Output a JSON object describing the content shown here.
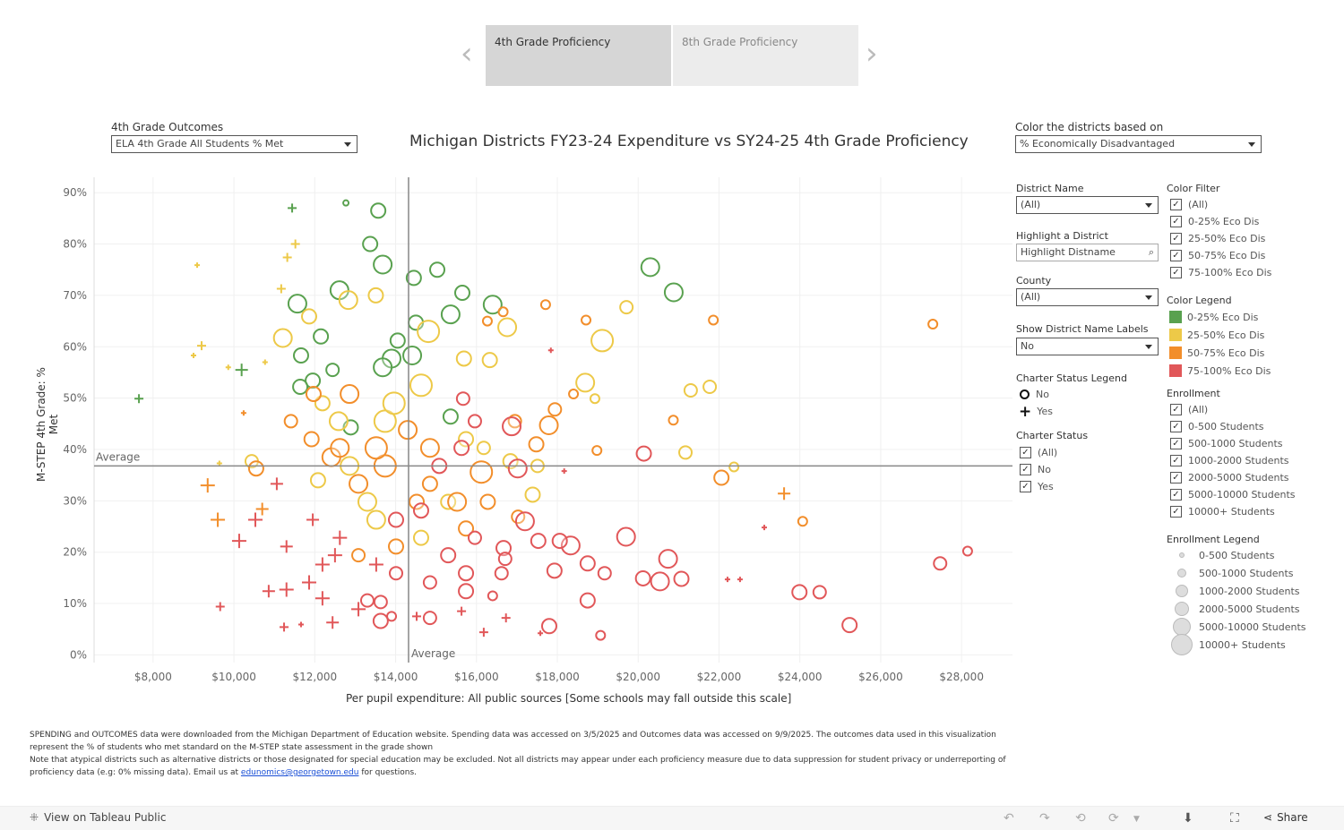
{
  "nav": {
    "prev_icon": "chevron-left-icon",
    "next_icon": "chevron-right-icon",
    "tabs": [
      {
        "label": "4th Grade Proficiency",
        "active": true
      },
      {
        "label": "8th Grade Proficiency",
        "active": false
      }
    ]
  },
  "outcomes": {
    "label": "4th Grade Outcomes",
    "value": "ELA 4th Grade All Students % Met"
  },
  "color_by": {
    "label": "Color the districts based on",
    "value": "% Economically Disadvantaged"
  },
  "filters": {
    "district_name": {
      "label": "District Name",
      "value": "(All)"
    },
    "highlight": {
      "label": "Highlight a District",
      "placeholder": "Highlight Distname"
    },
    "county": {
      "label": "County",
      "value": "(All)"
    },
    "show_labels": {
      "label": "Show District Name Labels",
      "value": "No"
    },
    "charter_legend": {
      "label": "Charter Status Legend",
      "items": [
        "No",
        "Yes"
      ]
    },
    "charter_status": {
      "label": "Charter Status",
      "items": [
        "(All)",
        "No",
        "Yes"
      ]
    },
    "color_filter": {
      "label": "Color Filter",
      "items": [
        "(All)",
        "0-25% Eco Dis",
        "25-50% Eco Dis",
        "50-75% Eco Dis",
        "75-100% Eco Dis"
      ]
    },
    "color_legend": {
      "label": "Color Legend",
      "items": [
        {
          "label": "0-25% Eco Dis",
          "color": "#59a14f"
        },
        {
          "label": "25-50% Eco Dis",
          "color": "#edc948"
        },
        {
          "label": "50-75% Eco Dis",
          "color": "#f28e2b"
        },
        {
          "label": "75-100% Eco Dis",
          "color": "#e15759"
        }
      ]
    },
    "enrollment": {
      "label": "Enrollment",
      "items": [
        "(All)",
        "0-500 Students",
        "500-1000 Students",
        "1000-2000 Students",
        "2000-5000 Students",
        "5000-10000 Students",
        "10000+ Students"
      ]
    },
    "enrollment_legend": {
      "label": "Enrollment Legend",
      "items": [
        "0-500 Students",
        "500-1000 Students",
        "1000-2000 Students",
        "2000-5000 Students",
        "5000-10000 Students",
        "10000+ Students"
      ]
    }
  },
  "chart_data": {
    "type": "scatter",
    "title": "Michigan Districts FY23-24 Expenditure vs SY24-25 4th Grade Proficiency",
    "xlabel": "Per pupil expenditure: All public sources [Some schools may fall outside this scale]",
    "ylabel": "M-STEP 4th Grade: % Met",
    "xlim": [
      6540,
      29260
    ],
    "ylim": [
      -1.5,
      93
    ],
    "x_ticks": [
      "$8,000",
      "$10,000",
      "$12,000",
      "$14,000",
      "$16,000",
      "$18,000",
      "$20,000",
      "$22,000",
      "$24,000",
      "$26,000",
      "$28,000"
    ],
    "x_tick_values": [
      8000,
      10000,
      12000,
      14000,
      16000,
      18000,
      20000,
      22000,
      24000,
      26000,
      28000
    ],
    "y_ticks": [
      "0%",
      "10%",
      "20%",
      "30%",
      "40%",
      "50%",
      "60%",
      "70%",
      "80%",
      "90%"
    ],
    "y_tick_values": [
      0,
      10,
      20,
      30,
      40,
      50,
      60,
      70,
      80,
      90
    ],
    "grid": true,
    "reference_lines": [
      {
        "axis": "x",
        "value": 14320,
        "label": "Average"
      },
      {
        "axis": "y",
        "value": 36.8,
        "label": "Average"
      }
    ],
    "point_fields": [
      "expenditure",
      "pct_met",
      "eco_dis_group_index",
      "enrollment_group_index",
      "charter"
    ],
    "points": [
      [
        11440,
        87,
        0,
        1,
        "Yes"
      ],
      [
        12770,
        88,
        0,
        0,
        "No"
      ],
      [
        13570,
        86.5,
        0,
        3,
        "No"
      ],
      [
        13370,
        80,
        0,
        3,
        "No"
      ],
      [
        13680,
        76,
        0,
        4,
        "No"
      ],
      [
        14450,
        73.4,
        0,
        3,
        "No"
      ],
      [
        15030,
        75,
        0,
        3,
        "No"
      ],
      [
        20300,
        75.5,
        0,
        4,
        "No"
      ],
      [
        20880,
        70.6,
        0,
        4,
        "No"
      ],
      [
        11570,
        68.4,
        0,
        4,
        "No"
      ],
      [
        12610,
        71,
        0,
        4,
        "No"
      ],
      [
        15650,
        70.5,
        0,
        3,
        "No"
      ],
      [
        16400,
        68.2,
        0,
        4,
        "No"
      ],
      [
        15360,
        66.3,
        0,
        4,
        "No"
      ],
      [
        14500,
        64.7,
        0,
        3,
        "No"
      ],
      [
        10190,
        55.5,
        0,
        2,
        "Yes"
      ],
      [
        7650,
        49.9,
        0,
        1,
        "Yes"
      ],
      [
        11660,
        58.3,
        0,
        3,
        "No"
      ],
      [
        12150,
        62,
        0,
        3,
        "No"
      ],
      [
        12440,
        55.5,
        0,
        2,
        "No"
      ],
      [
        11950,
        53.4,
        0,
        3,
        "No"
      ],
      [
        14410,
        58.3,
        0,
        4,
        "No"
      ],
      [
        13900,
        57.7,
        0,
        4,
        "No"
      ],
      [
        15360,
        46.4,
        0,
        3,
        "No"
      ],
      [
        12890,
        44.3,
        0,
        3,
        "No"
      ],
      [
        11640,
        52.2,
        0,
        3,
        "No"
      ],
      [
        13680,
        56,
        0,
        4,
        "No"
      ],
      [
        14050,
        61.2,
        0,
        3,
        "No"
      ],
      [
        9090,
        75.9,
        1,
        0,
        "Yes"
      ],
      [
        11520,
        80,
        1,
        1,
        "Yes"
      ],
      [
        11320,
        77.4,
        1,
        1,
        "Yes"
      ],
      [
        11170,
        71.3,
        1,
        1,
        "Yes"
      ],
      [
        9200,
        60.2,
        1,
        1,
        "Yes"
      ],
      [
        9000,
        58.3,
        1,
        0,
        "Yes"
      ],
      [
        9860,
        56,
        1,
        0,
        "Yes"
      ],
      [
        10770,
        57,
        1,
        0,
        "Yes"
      ],
      [
        19110,
        61.2,
        1,
        5,
        "No"
      ],
      [
        19710,
        67.7,
        1,
        2,
        "No"
      ],
      [
        16760,
        63.8,
        1,
        4,
        "No"
      ],
      [
        18690,
        53,
        1,
        4,
        "No"
      ],
      [
        21300,
        51.5,
        1,
        2,
        "No"
      ],
      [
        21770,
        52.2,
        1,
        2,
        "No"
      ],
      [
        18930,
        49.9,
        1,
        1,
        "No"
      ],
      [
        21170,
        39.4,
        1,
        2,
        "No"
      ],
      [
        22370,
        36.6,
        1,
        1,
        "No"
      ],
      [
        9640,
        37.3,
        1,
        0,
        "Yes"
      ],
      [
        10440,
        37.7,
        1,
        2,
        "No"
      ],
      [
        11210,
        61.7,
        1,
        4,
        "No"
      ],
      [
        11860,
        65.9,
        1,
        3,
        "No"
      ],
      [
        12830,
        69.1,
        1,
        4,
        "No"
      ],
      [
        13510,
        70,
        1,
        3,
        "No"
      ],
      [
        14810,
        63,
        1,
        5,
        "No"
      ],
      [
        15690,
        57.7,
        1,
        3,
        "No"
      ],
      [
        16330,
        57.4,
        1,
        3,
        "No"
      ],
      [
        14630,
        52.5,
        1,
        5,
        "No"
      ],
      [
        15740,
        42,
        1,
        3,
        "No"
      ],
      [
        13740,
        45.5,
        1,
        5,
        "No"
      ],
      [
        12860,
        36.8,
        1,
        4,
        "No"
      ],
      [
        12080,
        34,
        1,
        3,
        "No"
      ],
      [
        13520,
        26.3,
        1,
        4,
        "No"
      ],
      [
        14630,
        22.8,
        1,
        3,
        "No"
      ],
      [
        15300,
        29.8,
        1,
        3,
        "No"
      ],
      [
        16180,
        40.3,
        1,
        2,
        "No"
      ],
      [
        16840,
        37.7,
        1,
        3,
        "No"
      ],
      [
        17510,
        36.8,
        1,
        2,
        "No"
      ],
      [
        17390,
        31.2,
        1,
        3,
        "No"
      ],
      [
        12590,
        45.5,
        1,
        4,
        "No"
      ],
      [
        13960,
        49,
        1,
        5,
        "No"
      ],
      [
        13300,
        29.8,
        1,
        4,
        "No"
      ],
      [
        12190,
        49,
        1,
        3,
        "No"
      ],
      [
        27290,
        64.4,
        2,
        1,
        "No"
      ],
      [
        21860,
        65.2,
        2,
        1,
        "No"
      ],
      [
        18710,
        65.2,
        2,
        1,
        "No"
      ],
      [
        17710,
        68.2,
        2,
        1,
        "No"
      ],
      [
        16270,
        65,
        2,
        1,
        "No"
      ],
      [
        16660,
        66.8,
        2,
        1,
        "No"
      ],
      [
        23610,
        31.4,
        2,
        2,
        "Yes"
      ],
      [
        24070,
        26,
        2,
        1,
        "No"
      ],
      [
        22060,
        34.5,
        2,
        3,
        "No"
      ],
      [
        20870,
        45.7,
        2,
        1,
        "No"
      ],
      [
        18980,
        39.8,
        2,
        1,
        "No"
      ],
      [
        17790,
        44.7,
        2,
        4,
        "No"
      ],
      [
        17940,
        47.8,
        2,
        2,
        "No"
      ],
      [
        17480,
        41,
        2,
        3,
        "No"
      ],
      [
        16950,
        45.5,
        2,
        2,
        "No"
      ],
      [
        16120,
        35.6,
        2,
        5,
        "No"
      ],
      [
        17030,
        26.9,
        2,
        2,
        "No"
      ],
      [
        9350,
        33,
        2,
        3,
        "Yes"
      ],
      [
        9600,
        26.3,
        2,
        3,
        "Yes"
      ],
      [
        10700,
        28.4,
        2,
        2,
        "Yes"
      ],
      [
        10550,
        36.3,
        2,
        3,
        "No"
      ],
      [
        10240,
        47.1,
        2,
        0,
        "Yes"
      ],
      [
        11410,
        45.5,
        2,
        2,
        "No"
      ],
      [
        11920,
        42,
        2,
        3,
        "No"
      ],
      [
        12410,
        38.5,
        2,
        4,
        "No"
      ],
      [
        13080,
        33.3,
        2,
        4,
        "No"
      ],
      [
        13740,
        36.8,
        2,
        5,
        "No"
      ],
      [
        14300,
        43.8,
        2,
        4,
        "No"
      ],
      [
        14850,
        33.3,
        2,
        3,
        "No"
      ],
      [
        15520,
        29.8,
        2,
        4,
        "No"
      ],
      [
        15740,
        24.6,
        2,
        3,
        "No"
      ],
      [
        14010,
        21.1,
        2,
        3,
        "No"
      ],
      [
        13080,
        19.4,
        2,
        2,
        "No"
      ],
      [
        14850,
        40.3,
        2,
        4,
        "No"
      ],
      [
        11970,
        50.8,
        2,
        3,
        "No"
      ],
      [
        12860,
        50.8,
        2,
        4,
        "No"
      ],
      [
        14520,
        29.8,
        2,
        3,
        "No"
      ],
      [
        16280,
        29.8,
        2,
        3,
        "No"
      ],
      [
        13520,
        40.3,
        2,
        5,
        "No"
      ],
      [
        12620,
        40.3,
        2,
        4,
        "No"
      ],
      [
        18400,
        50.8,
        2,
        1,
        "No"
      ],
      [
        27470,
        17.8,
        3,
        2,
        "No"
      ],
      [
        28150,
        20.2,
        3,
        1,
        "No"
      ],
      [
        25230,
        5.8,
        3,
        3,
        "No"
      ],
      [
        23990,
        12.2,
        3,
        3,
        "No"
      ],
      [
        24490,
        12.2,
        3,
        2,
        "No"
      ],
      [
        23120,
        24.8,
        3,
        0,
        "Yes"
      ],
      [
        22210,
        14.7,
        3,
        0,
        "Yes"
      ],
      [
        22520,
        14.7,
        3,
        0,
        "Yes"
      ],
      [
        19700,
        23,
        3,
        4,
        "No"
      ],
      [
        20740,
        18.7,
        3,
        4,
        "No"
      ],
      [
        20540,
        14.3,
        3,
        4,
        "No"
      ],
      [
        21070,
        14.8,
        3,
        3,
        "No"
      ],
      [
        20120,
        14.9,
        3,
        3,
        "No"
      ],
      [
        20140,
        39.2,
        3,
        3,
        "No"
      ],
      [
        19070,
        3.8,
        3,
        1,
        "No"
      ],
      [
        17800,
        5.6,
        3,
        3,
        "No"
      ],
      [
        18750,
        10.6,
        3,
        3,
        "No"
      ],
      [
        19170,
        15.9,
        3,
        2,
        "No"
      ],
      [
        18750,
        17.8,
        3,
        3,
        "No"
      ],
      [
        18330,
        21.3,
        3,
        4,
        "No"
      ],
      [
        18060,
        22.2,
        3,
        3,
        "No"
      ],
      [
        17930,
        16.4,
        3,
        3,
        "No"
      ],
      [
        17530,
        22.2,
        3,
        3,
        "No"
      ],
      [
        16870,
        44.5,
        3,
        4,
        "No"
      ],
      [
        17020,
        36.3,
        3,
        4,
        "No"
      ],
      [
        17200,
        26,
        3,
        4,
        "No"
      ],
      [
        16670,
        20.8,
        3,
        3,
        "No"
      ],
      [
        16710,
        18.7,
        3,
        2,
        "No"
      ],
      [
        17840,
        59.3,
        3,
        0,
        "Yes"
      ],
      [
        18170,
        35.8,
        3,
        0,
        "Yes"
      ],
      [
        15670,
        49.9,
        3,
        2,
        "No"
      ],
      [
        9660,
        9.4,
        3,
        1,
        "Yes"
      ],
      [
        10130,
        22.2,
        3,
        3,
        "Yes"
      ],
      [
        11240,
        5.4,
        3,
        1,
        "Yes"
      ],
      [
        11660,
        5.9,
        3,
        0,
        "Yes"
      ],
      [
        12440,
        6.3,
        3,
        2,
        "Yes"
      ],
      [
        13630,
        6.6,
        3,
        3,
        "No"
      ],
      [
        13630,
        10.3,
        3,
        2,
        "No"
      ],
      [
        13900,
        7.5,
        3,
        1,
        "No"
      ],
      [
        14520,
        7.5,
        3,
        1,
        "Yes"
      ],
      [
        15630,
        8.5,
        3,
        1,
        "Yes"
      ],
      [
        16180,
        4.4,
        3,
        1,
        "Yes"
      ],
      [
        16730,
        7.2,
        3,
        1,
        "Yes"
      ],
      [
        17580,
        4.2,
        3,
        0,
        "Yes"
      ],
      [
        10860,
        12.4,
        3,
        2,
        "Yes"
      ],
      [
        11300,
        12.7,
        3,
        3,
        "Yes"
      ],
      [
        11860,
        14.1,
        3,
        3,
        "Yes"
      ],
      [
        12190,
        11,
        3,
        3,
        "Yes"
      ],
      [
        13080,
        8.9,
        3,
        3,
        "Yes"
      ],
      [
        13300,
        10.6,
        3,
        2,
        "No"
      ],
      [
        14850,
        14.1,
        3,
        2,
        "No"
      ],
      [
        15740,
        12.4,
        3,
        3,
        "No"
      ],
      [
        15300,
        19.4,
        3,
        3,
        "No"
      ],
      [
        15960,
        22.8,
        3,
        2,
        "No"
      ],
      [
        16620,
        15.9,
        3,
        2,
        "No"
      ],
      [
        12620,
        22.8,
        3,
        3,
        "Yes"
      ],
      [
        11950,
        26.3,
        3,
        2,
        "Yes"
      ],
      [
        11060,
        33.3,
        3,
        2,
        "Yes"
      ],
      [
        10530,
        26.3,
        3,
        3,
        "Yes"
      ],
      [
        11300,
        21.1,
        3,
        2,
        "Yes"
      ],
      [
        14010,
        15.9,
        3,
        2,
        "No"
      ],
      [
        14630,
        28.1,
        3,
        3,
        "No"
      ],
      [
        15080,
        36.8,
        3,
        3,
        "No"
      ],
      [
        15630,
        40.3,
        3,
        3,
        "No"
      ],
      [
        15960,
        45.5,
        3,
        2,
        "No"
      ],
      [
        13520,
        17.6,
        3,
        3,
        "Yes"
      ],
      [
        14010,
        26.3,
        3,
        3,
        "No"
      ],
      [
        12500,
        19.4,
        3,
        3,
        "Yes"
      ],
      [
        12190,
        17.6,
        3,
        3,
        "Yes"
      ],
      [
        15740,
        15.9,
        3,
        3,
        "No"
      ],
      [
        16400,
        11.5,
        3,
        1,
        "No"
      ],
      [
        14850,
        7.2,
        3,
        2,
        "No"
      ]
    ]
  },
  "footer": {
    "line1": "SPENDING and OUTCOMES data were downloaded from the Michigan Department of Education website. Spending data was accessed on 3/5/2025 and Outcomes data was accessed on 9/9/2025. The outcomes data used in this visualization represent the % of students who met standard on the M-STEP state assessment in the grade shown",
    "line2_pre": "Note that atypical districts such as alternative districts or those designated for special education may be excluded. Not all districts may appear under each proficiency measure due to data suppression for student privacy or underreporting of proficiency data (e.g: 0% missing data). Email us at ",
    "email": "edunomics@georgetown.edu",
    "line2_post": " for questions."
  },
  "toolbar": {
    "view_label": "View on Tableau Public",
    "share_label": "Share"
  }
}
